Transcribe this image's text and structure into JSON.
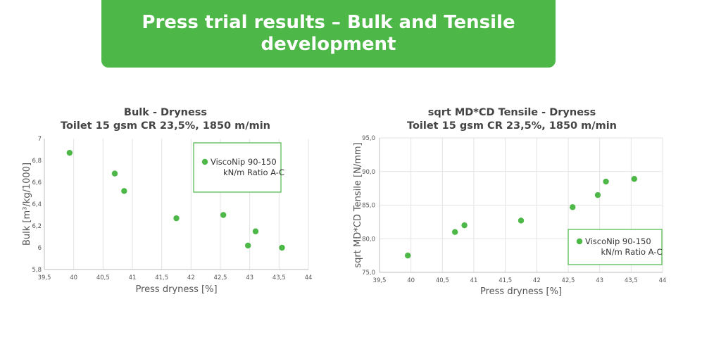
{
  "banner": {
    "title_line1": "Press trial results – Bulk and Tensile",
    "title_line2": "development"
  },
  "colors": {
    "brand_green": "#4db848",
    "marker_green": "#4db848",
    "grid": "#e3e3e3",
    "text": "#444444"
  },
  "chart_data": [
    {
      "type": "scatter",
      "title": "Bulk - Dryness",
      "subtitle": "Toilet 15 gsm CR 23,5%, 1850 m/min",
      "xlabel": "Press dryness [%]",
      "ylabel": "Bulk [m³/kg/1000]",
      "xlim": [
        39.5,
        44
      ],
      "ylim": [
        5.8,
        7
      ],
      "xticks": [
        39.5,
        40,
        40.5,
        41,
        41.5,
        42,
        42.5,
        43,
        43.5,
        44
      ],
      "xtick_labels": [
        "39,5",
        "40",
        "40,5",
        "41",
        "41,5",
        "42",
        "42,5",
        "43",
        "43,5",
        "44"
      ],
      "yticks": [
        5.8,
        6,
        6.2,
        6.4,
        6.6,
        6.8,
        7
      ],
      "ytick_labels": [
        "5,8",
        "6",
        "6,2",
        "6,4",
        "6,6",
        "6,8",
        "7"
      ],
      "grid": "vertical",
      "legend_position": "top-right",
      "series": [
        {
          "name_line1": "ViscoNip 90-150",
          "name_line2": "kN/m Ratio A-C",
          "x": [
            39.93,
            40.7,
            40.86,
            41.75,
            42.55,
            42.97,
            43.1,
            43.55
          ],
          "y": [
            6.87,
            6.68,
            6.52,
            6.27,
            6.3,
            6.02,
            6.15,
            6.0
          ]
        }
      ]
    },
    {
      "type": "scatter",
      "title": "sqrt MD*CD Tensile - Dryness",
      "subtitle": "Toilet 15 gsm CR 23,5%, 1850 m/min",
      "xlabel": "Press dryness [%]",
      "ylabel": "sqrt MD*CD Tensile [N/mm]",
      "xlim": [
        39.5,
        44
      ],
      "ylim": [
        75,
        95
      ],
      "xticks": [
        39.5,
        40,
        40.5,
        41,
        41.5,
        42,
        42.5,
        43,
        43.5,
        44
      ],
      "xtick_labels": [
        "39,5",
        "40",
        "40,5",
        "41",
        "41,5",
        "42",
        "42,5",
        "43",
        "43,5",
        "44"
      ],
      "yticks": [
        75,
        80,
        85,
        90,
        95
      ],
      "ytick_labels": [
        "75,0",
        "80,0",
        "85,0",
        "90,0",
        "95,0"
      ],
      "grid": "both",
      "legend_position": "bottom-right",
      "series": [
        {
          "name_line1": "ViscoNip 90-150",
          "name_line2": "kN/m Ratio A-C",
          "x": [
            39.95,
            40.7,
            40.85,
            41.75,
            42.57,
            42.97,
            43.1,
            43.55
          ],
          "y": [
            77.5,
            81.0,
            82.0,
            82.7,
            84.7,
            86.5,
            88.5,
            88.9
          ]
        }
      ]
    }
  ]
}
